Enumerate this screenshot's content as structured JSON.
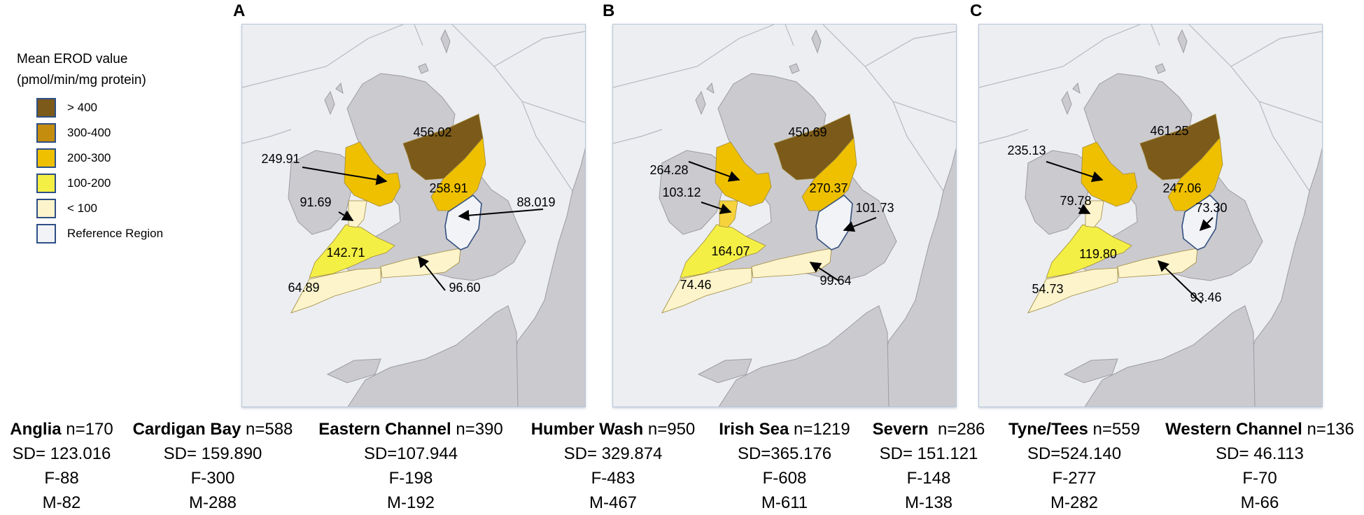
{
  "legend": {
    "title_line1": "Mean EROD value",
    "title_line2": "(pmol/min/mg protein)",
    "items": [
      {
        "label": "> 400",
        "color": "#7b5a1a"
      },
      {
        "label": "300-400",
        "color": "#c58d0e"
      },
      {
        "label": "200-300",
        "color": "#eec000"
      },
      {
        "label": "100-200",
        "color": "#f4ef45"
      },
      {
        "label": "< 100",
        "color": "#fdf4cc"
      },
      {
        "label": "Reference Region",
        "color": "#f1f3f7"
      }
    ]
  },
  "panels": [
    {
      "letter": "A",
      "values": {
        "humber": "456.02",
        "irish": "249.91",
        "tyne": "258.91",
        "ref": "88.019",
        "severn": "91.69",
        "cardigan": "142.71",
        "eastern": "96.60",
        "western": "64.89"
      }
    },
    {
      "letter": "B",
      "values": {
        "humber": "450.69",
        "irish": "264.28",
        "tyne": "270.37",
        "ref": "101.73",
        "severn": "103.12",
        "cardigan": "164.07",
        "eastern": "99.64",
        "western": "74.46"
      }
    },
    {
      "letter": "C",
      "values": {
        "humber": "461.25",
        "irish": "235.13",
        "tyne": "247.06",
        "ref": "73.30",
        "severn": "79.78",
        "cardigan": "119.80",
        "eastern": "93.46",
        "western": "54.73"
      }
    }
  ],
  "stats": [
    {
      "name": "Anglia",
      "n": "n=170",
      "sd": "SD= 123.016",
      "f": "F-88",
      "m": "M-82"
    },
    {
      "name": "Cardigan Bay",
      "n": " n=588",
      "sd": "SD= 159.890",
      "f": "F-300",
      "m": "M-288"
    },
    {
      "name": "Eastern Channel",
      "n": "n=390",
      "sd": "SD=107.944",
      "f": "F-198",
      "m": "M-192"
    },
    {
      "name": "Humber Wash",
      "n": "n=950",
      "sd": "SD= 329.874",
      "f": "F-483",
      "m": "M-467"
    },
    {
      "name": "Irish Sea",
      "n": "n=1219",
      "sd": "SD=365.176",
      "f": "F-608",
      "m": "M-611"
    },
    {
      "name": "Severn",
      "n": "  n=286",
      "sd": "SD= 151.121",
      "f": "F-148",
      "m": "M-138"
    },
    {
      "name": "Tyne/Tees",
      "n": "n=559",
      "sd": "SD=524.140",
      "f": "F-277",
      "m": "M-282"
    },
    {
      "name": "Western Channel",
      "n": "n=136",
      "sd": "SD= 46.113",
      "f": "F-70",
      "m": "M-66"
    }
  ]
}
